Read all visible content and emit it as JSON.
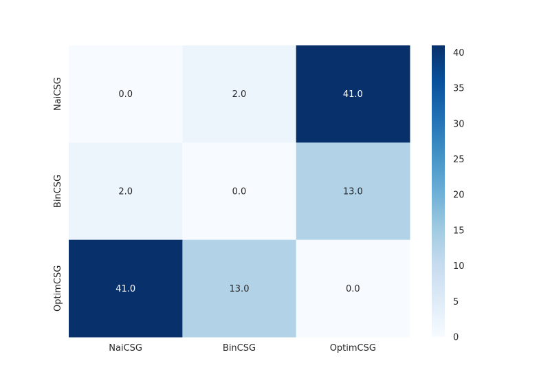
{
  "chart_data": {
    "type": "heatmap",
    "title": "",
    "xlabel": "",
    "ylabel": "",
    "x_categories": [
      "NaiCSG",
      "BinCSG",
      "OptimCSG"
    ],
    "y_categories": [
      "NaiCSG",
      "BinCSG",
      "OptimCSG"
    ],
    "values": [
      [
        0.0,
        2.0,
        41.0
      ],
      [
        2.0,
        0.0,
        13.0
      ],
      [
        41.0,
        13.0,
        0.0
      ]
    ],
    "cell_labels": [
      [
        "0.0",
        "2.0",
        "41.0"
      ],
      [
        "2.0",
        "0.0",
        "13.0"
      ],
      [
        "41.0",
        "13.0",
        "0.0"
      ]
    ],
    "colormap": "Blues",
    "vmin": 0,
    "vmax": 41,
    "colorbar_ticks": [
      0,
      5,
      10,
      15,
      20,
      25,
      30,
      35,
      40
    ],
    "grid": false
  }
}
